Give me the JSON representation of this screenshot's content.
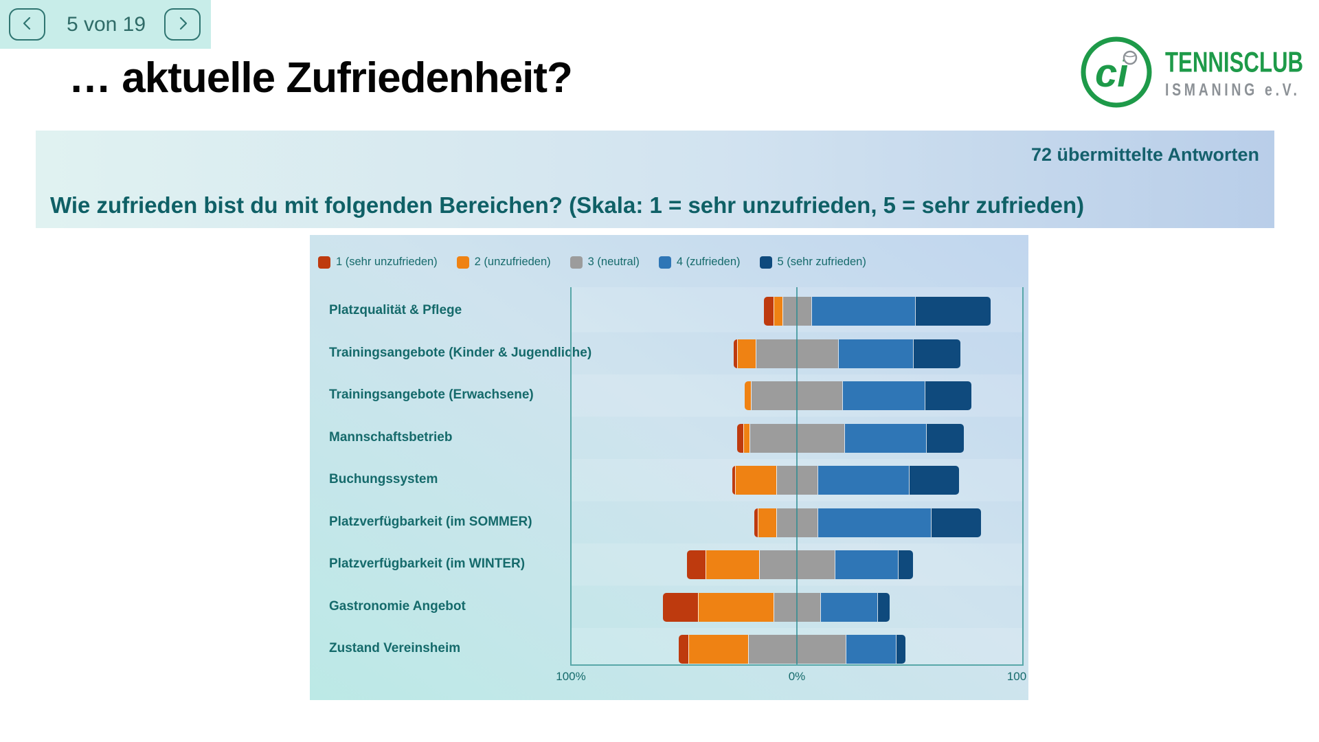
{
  "nav": {
    "page_label": "5 von 19"
  },
  "title": "… aktuelle Zufriedenheit?",
  "logo": {
    "monogram": "ci",
    "name": "TENNISCLUB",
    "subname": "ISMANING e.V.",
    "green": "#1E9A49",
    "gray": "#8C9196"
  },
  "banner": {
    "responses": "72 übermittelte Antworten",
    "question": "Wie zufrieden bist du mit folgenden Bereichen? (Skala: 1 = sehr unzufrieden, 5 = sehr zufrieden)"
  },
  "chart_data": {
    "type": "bar",
    "variant": "diverging_stacked_likert",
    "legend_position": "top",
    "axis": {
      "left_label": "100%",
      "center_label": "0%",
      "right_label": "100",
      "range_pct": [
        -100,
        100
      ],
      "neutral_split_centered": true
    },
    "series_meta": [
      {
        "name": "1 (sehr unzufrieden)",
        "color": "#BE3A0E"
      },
      {
        "name": "2 (unzufrieden)",
        "color": "#EF8213"
      },
      {
        "name": "3 (neutral)",
        "color": "#9C9C9C"
      },
      {
        "name": "4 (zufrieden)",
        "color": "#2F76B6"
      },
      {
        "name": "5 (sehr zufrieden)",
        "color": "#0F4A7D"
      }
    ],
    "values_unit": "percent",
    "rows": [
      {
        "label": "Platzqualität & Pflege",
        "values": [
          4.2,
          4.2,
          12.5,
          45.8,
          33.3
        ]
      },
      {
        "label": "Trainingsangebote (Kinder & Jugendliche)",
        "values": [
          1.4,
          8.3,
          36.1,
          33.3,
          20.8
        ]
      },
      {
        "label": "Trainingsangebote (Erwachsene)",
        "values": [
          0,
          2.8,
          40.3,
          36.1,
          20.8
        ]
      },
      {
        "label": "Mannschaftsbetrieb",
        "values": [
          2.8,
          2.8,
          41.7,
          36.1,
          16.7
        ]
      },
      {
        "label": "Buchungssystem",
        "values": [
          1.4,
          18.1,
          18.1,
          40.3,
          22.2
        ]
      },
      {
        "label": "Platzverfügbarkeit (im SOMMER)",
        "values": [
          1.4,
          8.3,
          18.1,
          50.0,
          22.2
        ]
      },
      {
        "label": "Platzverfügbarkeit (im WINTER)",
        "values": [
          8.3,
          23.6,
          33.3,
          27.8,
          6.9
        ]
      },
      {
        "label": "Gastronomie Angebot",
        "values": [
          15.3,
          33.3,
          20.8,
          25.0,
          5.6
        ]
      },
      {
        "label": "Zustand Vereinsheim",
        "values": [
          4.2,
          26.4,
          43.1,
          22.2,
          4.2
        ]
      }
    ]
  }
}
